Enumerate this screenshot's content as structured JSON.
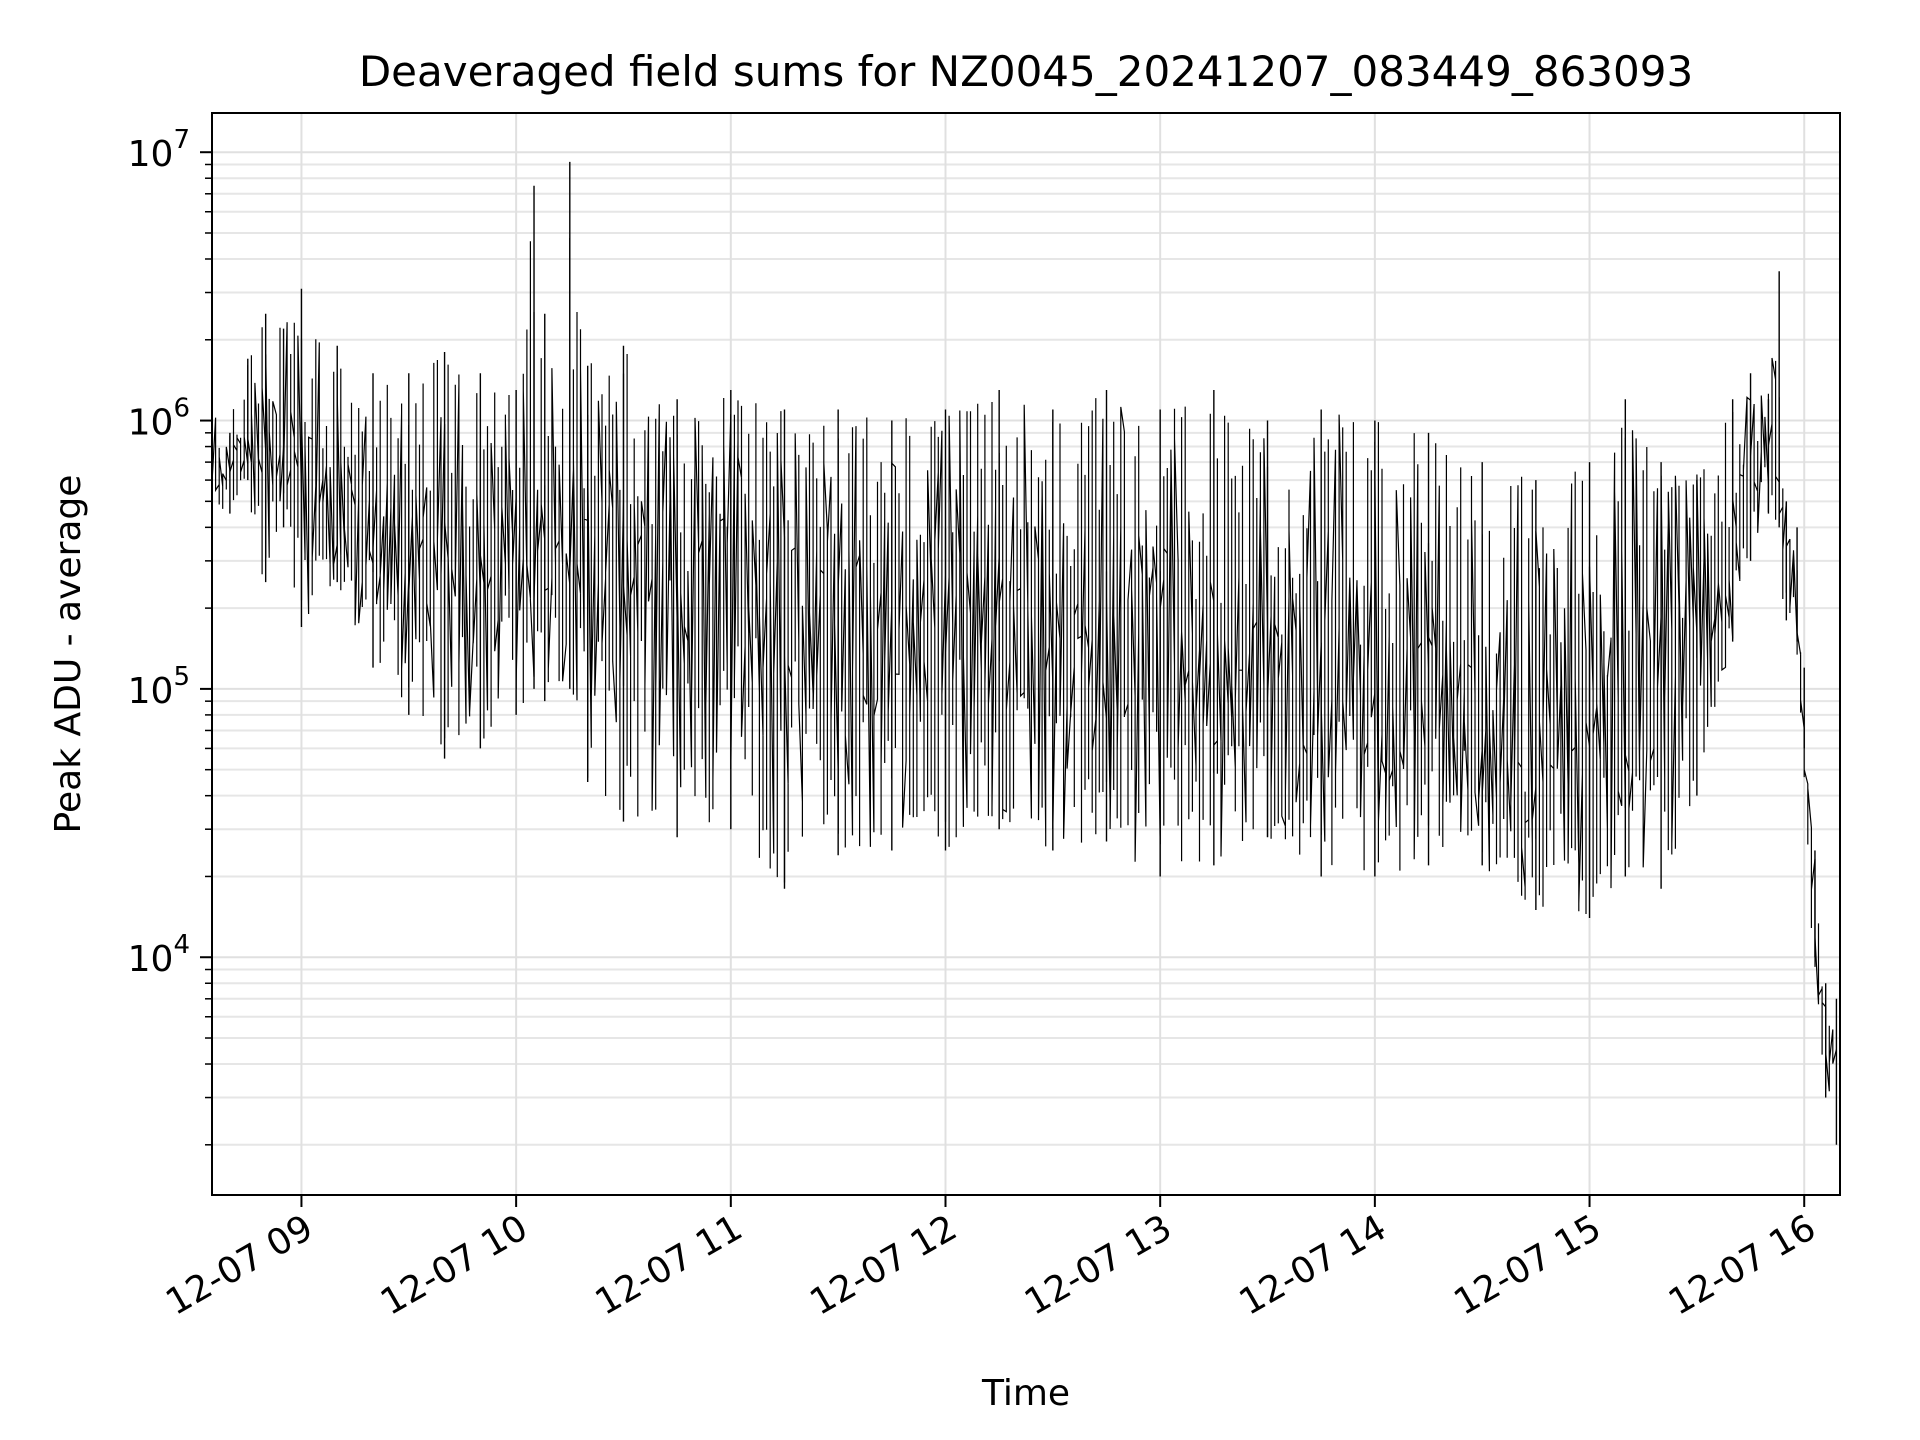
{
  "chart_data": {
    "type": "line",
    "title": "Deaveraged field sums for NZ0045_20241207_083449_863093",
    "xlabel": "Time",
    "ylabel": "Peak ADU - average",
    "yscale": "log",
    "ylim": [
      1300,
      14000000
    ],
    "xlim": [
      "2024-12-07 08:35",
      "2024-12-07 16:10"
    ],
    "grid": true,
    "x_ticks": [
      {
        "value": "2024-12-07 09:00",
        "label": "12-07 09"
      },
      {
        "value": "2024-12-07 10:00",
        "label": "12-07 10"
      },
      {
        "value": "2024-12-07 11:00",
        "label": "12-07 11"
      },
      {
        "value": "2024-12-07 12:00",
        "label": "12-07 12"
      },
      {
        "value": "2024-12-07 13:00",
        "label": "12-07 13"
      },
      {
        "value": "2024-12-07 14:00",
        "label": "12-07 14"
      },
      {
        "value": "2024-12-07 15:00",
        "label": "12-07 15"
      },
      {
        "value": "2024-12-07 16:00",
        "label": "12-07 16"
      }
    ],
    "y_ticks": [
      {
        "value": 10000,
        "base": "10",
        "exp": "4"
      },
      {
        "value": 100000,
        "base": "10",
        "exp": "5"
      },
      {
        "value": 1000000,
        "base": "10",
        "exp": "6"
      },
      {
        "value": 10000000,
        "base": "10",
        "exp": "7"
      }
    ],
    "line_color": "#000000",
    "series": [
      {
        "x": [
          "2024-12-07 08:35",
          "2024-12-07 08:40",
          "2024-12-07 08:45",
          "2024-12-07 08:50",
          "2024-12-07 08:55",
          "2024-12-07 09:00",
          "2024-12-07 09:10",
          "2024-12-07 09:20",
          "2024-12-07 09:30",
          "2024-12-07 09:40",
          "2024-12-07 09:50",
          "2024-12-07 10:00",
          "2024-12-07 10:05",
          "2024-12-07 10:08",
          "2024-12-07 10:15",
          "2024-12-07 10:20",
          "2024-12-07 10:30",
          "2024-12-07 10:45",
          "2024-12-07 11:00",
          "2024-12-07 11:15",
          "2024-12-07 11:30",
          "2024-12-07 11:45",
          "2024-12-07 12:00",
          "2024-12-07 12:15",
          "2024-12-07 12:30",
          "2024-12-07 12:45",
          "2024-12-07 13:00",
          "2024-12-07 13:15",
          "2024-12-07 13:30",
          "2024-12-07 13:45",
          "2024-12-07 14:00",
          "2024-12-07 14:15",
          "2024-12-07 14:30",
          "2024-12-07 14:45",
          "2024-12-07 15:00",
          "2024-12-07 15:10",
          "2024-12-07 15:20",
          "2024-12-07 15:30",
          "2024-12-07 15:40",
          "2024-12-07 15:45",
          "2024-12-07 15:50",
          "2024-12-07 15:53",
          "2024-12-07 15:55",
          "2024-12-07 15:58",
          "2024-12-07 16:00",
          "2024-12-07 16:03",
          "2024-12-07 16:06",
          "2024-12-07 16:09"
        ],
        "high": [
          1200000,
          900000,
          1700000,
          2500000,
          2200000,
          3100000,
          1900000,
          1500000,
          1500000,
          1800000,
          1500000,
          1300000,
          7500000,
          2500000,
          9200000,
          1600000,
          1900000,
          1200000,
          1300000,
          1100000,
          1100000,
          1000000,
          1100000,
          1300000,
          1100000,
          1300000,
          1100000,
          1300000,
          1000000,
          1100000,
          1000000,
          900000,
          700000,
          600000,
          700000,
          1200000,
          700000,
          600000,
          1200000,
          1500000,
          1200000,
          3600000,
          500000,
          400000,
          120000,
          25000,
          8000,
          7000
        ],
        "low": [
          500000,
          450000,
          600000,
          250000,
          400000,
          170000,
          250000,
          120000,
          80000,
          55000,
          60000,
          80000,
          100000,
          90000,
          100000,
          45000,
          32000,
          28000,
          30000,
          18000,
          24000,
          25000,
          25000,
          30000,
          25000,
          27000,
          20000,
          22000,
          28000,
          20000,
          20000,
          22000,
          22000,
          15000,
          14000,
          20000,
          18000,
          40000,
          150000,
          300000,
          450000,
          400000,
          180000,
          150000,
          60000,
          10000,
          3000,
          2000
        ],
        "base": [
          650000,
          650000,
          750000,
          800000,
          700000,
          600000,
          450000,
          380000,
          300000,
          280000,
          300000,
          350000,
          400000,
          380000,
          400000,
          300000,
          250000,
          200000,
          200000,
          180000,
          170000,
          170000,
          170000,
          180000,
          180000,
          170000,
          150000,
          140000,
          130000,
          120000,
          110000,
          90000,
          70000,
          50000,
          60000,
          80000,
          100000,
          160000,
          300000,
          600000,
          800000,
          900000,
          350000,
          250000,
          80000,
          15000,
          5000,
          4000
        ]
      }
    ]
  }
}
